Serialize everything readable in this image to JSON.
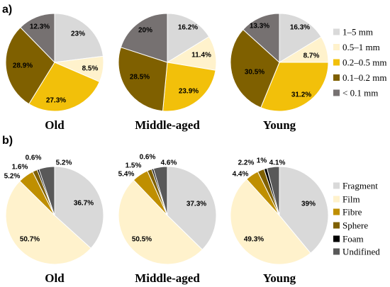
{
  "chart_data": [
    {
      "type": "pie",
      "panel": "a)",
      "legend": "right",
      "value_unit": "%",
      "categories": [
        "1–5 mm",
        "0.5–1 mm",
        "0.2–0.5 mm",
        "0.1–0.2 mm",
        "< 0.1 mm"
      ],
      "colors": [
        "#d9d9d9",
        "#fff2cc",
        "#f2c00a",
        "#7f6000",
        "#767171"
      ],
      "pies": [
        {
          "title": "Old",
          "values": [
            23,
            8.5,
            27.3,
            28.9,
            12.3
          ]
        },
        {
          "title": "Middle-aged",
          "values": [
            16.2,
            11.4,
            23.9,
            28.5,
            20
          ]
        },
        {
          "title": "Young",
          "values": [
            16.3,
            8.7,
            31.2,
            30.5,
            13.3
          ]
        }
      ]
    },
    {
      "type": "pie",
      "panel": "b)",
      "legend": "right",
      "value_unit": "%",
      "categories": [
        "Fragment",
        "Film",
        "Fibre",
        "Sphere",
        "Foam",
        "Undifined"
      ],
      "colors": [
        "#d9d9d9",
        "#fff2cc",
        "#bf8f00",
        "#7f6000",
        "#000000",
        "#595959"
      ],
      "pies": [
        {
          "title": "Old",
          "values": [
            36.7,
            50.7,
            5.2,
            1.6,
            0.6,
            5.2
          ]
        },
        {
          "title": "Middle-aged",
          "values": [
            37.3,
            50.5,
            5.4,
            1.5,
            0.6,
            4.6
          ]
        },
        {
          "title": "Young",
          "values": [
            39,
            49.3,
            4.4,
            2.2,
            1,
            4.1
          ]
        }
      ]
    }
  ]
}
